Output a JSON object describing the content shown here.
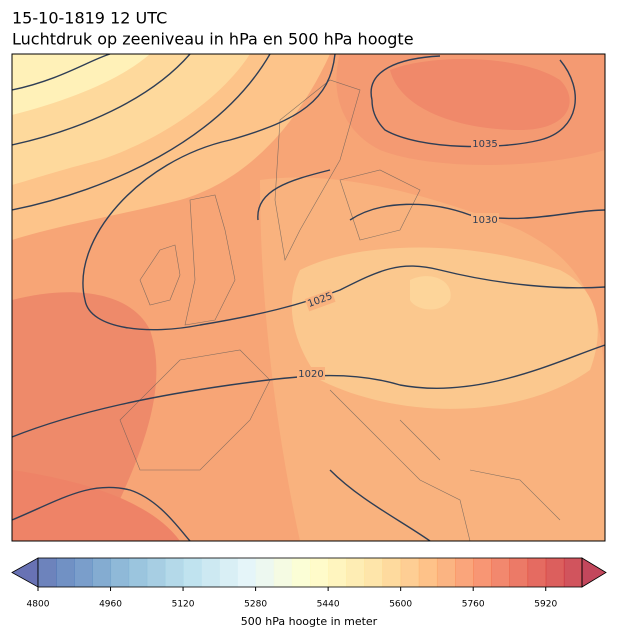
{
  "header": {
    "title": "15-10-1819 12 UTC",
    "subtitle": "Luchtdruk op zeeniveau in hPa en 500 hPa hoogte"
  },
  "contour_labels": [
    "1035",
    "1030",
    "1025",
    "1020"
  ],
  "colorbar": {
    "lim": [
      4800,
      6000
    ],
    "ticks": [
      4800,
      4960,
      5120,
      5280,
      5440,
      5600,
      5760,
      5920
    ],
    "label": "500 hPa hoogte in meter"
  }
}
